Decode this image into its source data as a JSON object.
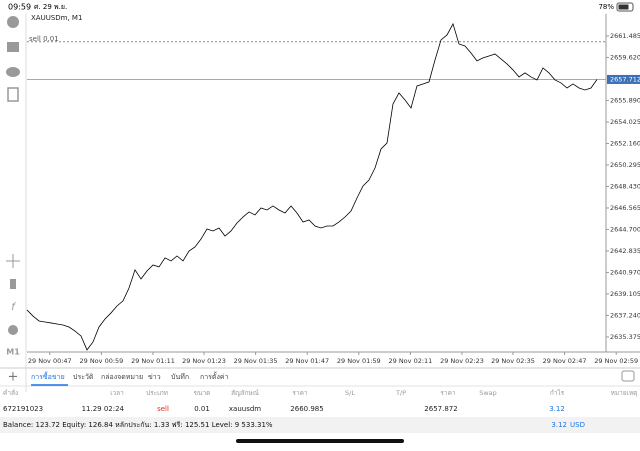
{
  "status_bar": {
    "time": "09:59",
    "date": "ศ. 29 พ.ย.",
    "battery": "78%"
  },
  "toolbar": {
    "timeframe": "M1"
  },
  "chart": {
    "type": "line",
    "symbol": "XAUUSDm, M1",
    "order_label": "sell 0.01",
    "order_price": 2660.985,
    "current_price": 2657.712,
    "color": "#000000",
    "values": [
      2637.72,
      2637.19,
      2636.76,
      2636.67,
      2636.59,
      2636.5,
      2636.41,
      2636.24,
      2635.89,
      2635.46,
      2634.25,
      2634.94,
      2636.24,
      2636.93,
      2637.46,
      2638.06,
      2638.5,
      2639.62,
      2641.19,
      2640.41,
      2641.1,
      2641.62,
      2641.45,
      2642.23,
      2641.97,
      2642.4,
      2641.97,
      2642.83,
      2643.18,
      2643.87,
      2644.74,
      2644.57,
      2644.83,
      2644.13,
      2644.57,
      2645.26,
      2645.78,
      2646.22,
      2645.96,
      2646.56,
      2646.39,
      2646.74,
      2646.39,
      2646.13,
      2646.74,
      2646.13,
      2645.35,
      2645.52,
      2645.0,
      2644.83,
      2645.0,
      2645.0,
      2645.35,
      2645.78,
      2646.3,
      2647.43,
      2648.47,
      2648.99,
      2650.03,
      2651.68,
      2652.2,
      2655.59,
      2656.54,
      2655.93,
      2655.24,
      2657.15,
      2657.32,
      2657.5,
      2659.4,
      2661.14,
      2661.57,
      2662.53,
      2660.79,
      2660.62,
      2660.01,
      2659.32,
      2659.58,
      2659.75,
      2659.92,
      2659.49,
      2659.06,
      2658.54,
      2657.93,
      2658.28,
      2657.93,
      2657.67,
      2658.71,
      2658.28,
      2657.67,
      2657.41,
      2656.97,
      2657.32,
      2656.97,
      2656.8,
      2656.97,
      2657.71
    ],
    "xlim": [
      0,
      100
    ],
    "xticks": [
      {
        "value": 3.8,
        "label": "29 Nov 00:47"
      },
      {
        "value": 12.4,
        "label": "29 Nov 00:59"
      },
      {
        "value": 21.0,
        "label": "29 Nov 01:11"
      },
      {
        "value": 29.5,
        "label": "29 Nov 01:23"
      },
      {
        "value": 38.1,
        "label": "29 Nov 01:35"
      },
      {
        "value": 46.7,
        "label": "29 Nov 01:47"
      },
      {
        "value": 55.3,
        "label": "29 Nov 01:59"
      },
      {
        "value": 63.9,
        "label": "29 Nov 02:11"
      },
      {
        "value": 72.5,
        "label": "29 Nov 02:23"
      },
      {
        "value": 81.0,
        "label": "29 Nov 02:35"
      },
      {
        "value": 89.6,
        "label": "29 Nov 02:47"
      },
      {
        "value": 98.2,
        "label": "29 Nov 02:59"
      }
    ],
    "ylim": [
      2634.07,
      2663.39
    ],
    "yticks": [
      2661.485,
      {
        "value": 2659.62,
        "label": "2659.620"
      },
      {
        "value": 2655.89,
        "label": "2655.890"
      },
      2654.025,
      {
        "value": 2652.16,
        "label": "2652.160"
      },
      2650.295,
      {
        "value": 2648.43,
        "label": "2648.430"
      },
      2646.565,
      {
        "value": 2644.7,
        "label": "2644.700"
      },
      2642.835,
      {
        "value": 2640.97,
        "label": "2640.970"
      },
      2639.105,
      {
        "value": 2637.24,
        "label": "2637.240"
      },
      2635.375
    ]
  },
  "tabs": [
    "การซื้อขาย",
    "ประวัติ",
    "กล่องจดหมาย",
    "ข่าว",
    "บันทึก",
    "การตั้งค่า"
  ],
  "table": {
    "headers": [
      "คำสั่ง",
      "เวลา",
      "ประเภท",
      "ขนาด",
      "สัญลักษณ์",
      "ราคา",
      "S/L",
      "T/P",
      "ราคา",
      "Swap",
      "กำไร",
      "หมายเหตุ"
    ],
    "row": {
      "ticket": "672191023",
      "time": "11.29 02:24",
      "type": "sell",
      "volume": "0.01",
      "symbol": "xauusdm",
      "open_price": "2660.985",
      "price": "2657.872",
      "profit": "3.12"
    }
  },
  "footer": {
    "summary": "Balance: 123.72 Equity: 126.84 หลักประกัน: 1.33 ฟรี: 125.51 Level: 9 533.31%",
    "profit": "3.12",
    "currency": "USD"
  }
}
